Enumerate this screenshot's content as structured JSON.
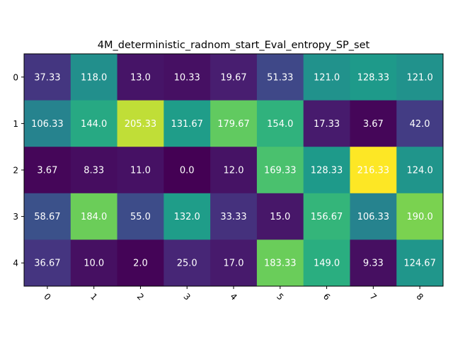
{
  "chart_data": {
    "type": "heatmap",
    "title": "4M_deterministic_radnom_start_Eval_entropy_SP_set",
    "xlabel": "",
    "ylabel": "",
    "x_tick_labels": [
      "0",
      "1",
      "2",
      "3",
      "4",
      "5",
      "6",
      "7",
      "8"
    ],
    "y_tick_labels": [
      "0",
      "1",
      "2",
      "3",
      "4"
    ],
    "colormap": "viridis",
    "value_range": [
      0.0,
      216.33
    ],
    "values": [
      [
        37.33,
        118.0,
        13.0,
        10.33,
        19.67,
        51.33,
        121.0,
        128.33,
        121.0
      ],
      [
        106.33,
        144.0,
        205.33,
        131.67,
        179.67,
        154.0,
        17.33,
        3.67,
        42.0
      ],
      [
        3.67,
        8.33,
        11.0,
        0.0,
        12.0,
        169.33,
        128.33,
        216.33,
        124.0
      ],
      [
        58.67,
        184.0,
        55.0,
        132.0,
        33.33,
        15.0,
        156.67,
        106.33,
        190.0
      ],
      [
        36.67,
        10.0,
        2.0,
        25.0,
        17.0,
        183.33,
        149.0,
        9.33,
        124.67
      ]
    ],
    "cell_labels": [
      [
        "37.33",
        "118.0",
        "13.0",
        "10.33",
        "19.67",
        "51.33",
        "121.0",
        "128.33",
        "121.0"
      ],
      [
        "106.33",
        "144.0",
        "205.33",
        "131.67",
        "179.67",
        "154.0",
        "17.33",
        "3.67",
        "42.0"
      ],
      [
        "3.67",
        "8.33",
        "11.0",
        "0.0",
        "12.0",
        "169.33",
        "128.33",
        "216.33",
        "124.0"
      ],
      [
        "58.67",
        "184.0",
        "55.0",
        "132.0",
        "33.33",
        "15.0",
        "156.67",
        "106.33",
        "190.0"
      ],
      [
        "36.67",
        "10.0",
        "2.0",
        "25.0",
        "17.0",
        "183.33",
        "149.0",
        "9.33",
        "124.67"
      ]
    ],
    "x_tick_rotation_deg": 45,
    "grid": false,
    "annotation_color": "#ffffff"
  }
}
